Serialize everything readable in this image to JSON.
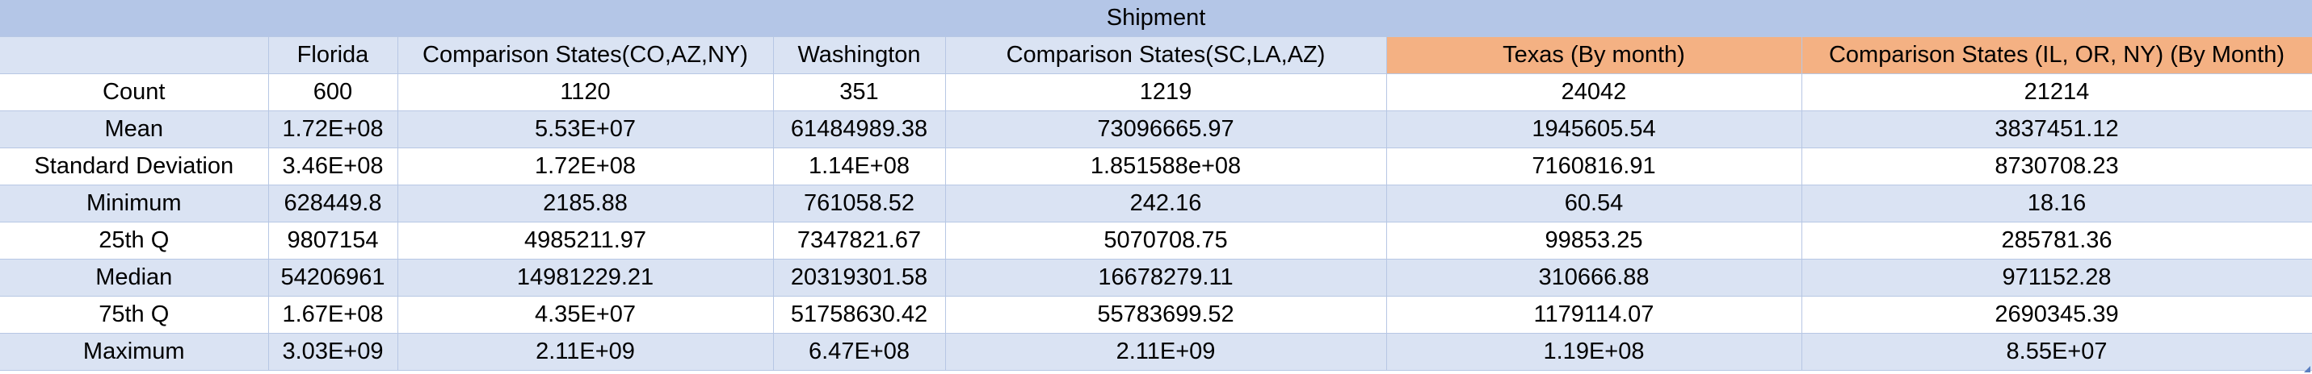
{
  "table": {
    "title": "Shipment",
    "columns": [
      "",
      "Florida",
      "Comparison States(CO,AZ,NY)",
      "Washington",
      "Comparison States(SC,LA,AZ)",
      "Texas (By month)",
      "Comparison States (IL, OR, NY) (By Month)"
    ],
    "highlight_color": "#F4B183",
    "rows": [
      [
        "Count",
        "600",
        "1120",
        "351",
        "1219",
        "24042",
        "21214"
      ],
      [
        "Mean",
        "1.72E+08",
        "5.53E+07",
        "61484989.38",
        "73096665.97",
        "1945605.54",
        "3837451.12"
      ],
      [
        "Standard Deviation",
        "3.46E+08",
        "1.72E+08",
        "1.14E+08",
        "1.851588e+08",
        "7160816.91",
        "8730708.23"
      ],
      [
        "Minimum",
        "628449.8",
        "2185.88",
        "761058.52",
        "242.16",
        "60.54",
        "18.16"
      ],
      [
        "25th Q",
        "9807154",
        "4985211.97",
        "7347821.67",
        "5070708.75",
        "99853.25",
        "285781.36"
      ],
      [
        "Median",
        "54206961",
        "14981229.21",
        "20319301.58",
        "16678279.11",
        "310666.88",
        "971152.28"
      ],
      [
        "75th Q",
        "1.67E+08",
        "4.35E+07",
        "51758630.42",
        "55783699.52",
        "1179114.07",
        "2690345.39"
      ],
      [
        "Maximum",
        "3.03E+09",
        "2.11E+09",
        "6.47E+08",
        "2.11E+09",
        "1.19E+08",
        "8.55E+07"
      ]
    ]
  }
}
